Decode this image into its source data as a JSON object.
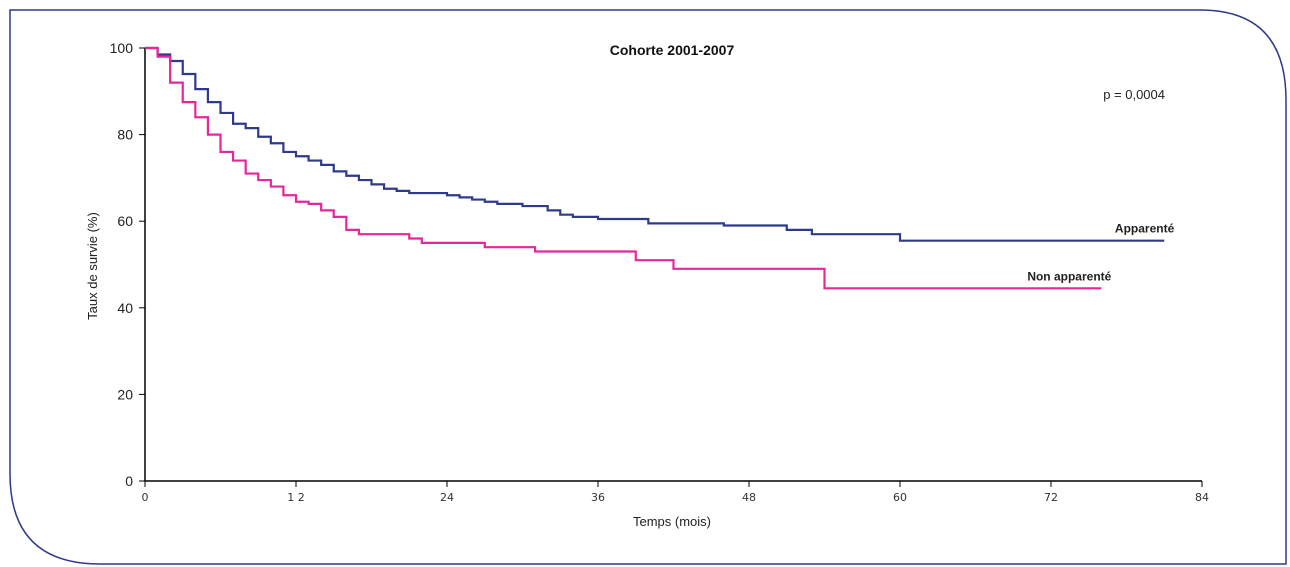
{
  "chart_data": {
    "type": "line",
    "step": true,
    "title": "Cohorte 2001-2007",
    "annotation": "p = 0,0004",
    "xlabel": "Temps (mois)",
    "ylabel": "Taux de survie (%)",
    "xlim": [
      0,
      84
    ],
    "ylim": [
      0,
      100
    ],
    "xticks": [
      0,
      12,
      24,
      36,
      48,
      60,
      72,
      84
    ],
    "xtick_labels": [
      "0",
      "1 2",
      "24",
      "36",
      "48",
      "60",
      "72",
      "84"
    ],
    "yticks": [
      0,
      20,
      40,
      60,
      80,
      100
    ],
    "ytick_labels": [
      "0",
      "20",
      "40",
      "60",
      "80",
      "100"
    ],
    "grid": false,
    "series": [
      {
        "name": "Apparenté",
        "color": "#2e3a8c",
        "x": [
          0,
          1,
          2,
          3,
          4,
          5,
          6,
          7,
          8,
          9,
          10,
          11,
          12,
          13,
          14,
          15,
          16,
          17,
          18,
          19,
          20,
          21,
          23,
          24,
          25,
          26,
          27,
          28,
          30,
          31,
          32,
          33,
          34,
          36,
          38,
          40,
          43,
          46,
          51,
          53,
          55,
          60,
          81
        ],
        "y": [
          100,
          98.5,
          97,
          94,
          90.5,
          87.5,
          85,
          82.5,
          81.5,
          79.5,
          78,
          76,
          75,
          74,
          73,
          71.5,
          70.5,
          69.5,
          68.5,
          67.5,
          67,
          66.5,
          66.5,
          66,
          65.5,
          65,
          64.5,
          64,
          63.5,
          63.5,
          62.5,
          61.5,
          61,
          60.5,
          60.5,
          59.5,
          59.5,
          59,
          58,
          57,
          57,
          55.5,
          55.5
        ]
      },
      {
        "name": "Non apparenté",
        "color": "#e6279b",
        "x": [
          0,
          1,
          2,
          3,
          4,
          5,
          6,
          7,
          8,
          9,
          10,
          11,
          12,
          13,
          14,
          15,
          16,
          17,
          19,
          21,
          22,
          25,
          27,
          30,
          31,
          35,
          39,
          42,
          54,
          76
        ],
        "y": [
          100,
          98,
          92,
          87.5,
          84,
          80,
          76,
          74,
          71,
          69.5,
          68,
          66,
          64.5,
          64,
          62.5,
          61,
          58,
          57,
          57,
          56,
          55,
          55,
          54,
          54,
          53,
          53,
          51,
          49,
          44.5,
          44.5
        ]
      }
    ]
  }
}
